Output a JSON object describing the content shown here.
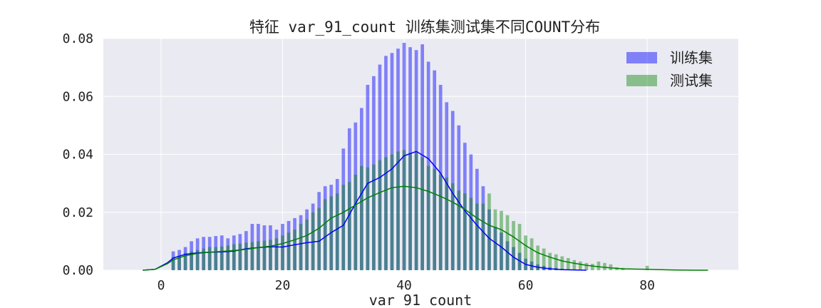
{
  "chart_data": {
    "type": "histogram+kde",
    "title": "特征 var_91_count 训练集测试集不同COUNT分布",
    "xlabel": "var_91_count",
    "ylabel": "",
    "xlim": [
      -9.5,
      95
    ],
    "ylim": [
      0,
      0.08
    ],
    "x_ticks": [
      0,
      20,
      40,
      60,
      80
    ],
    "y_ticks": [
      "0.00",
      "0.02",
      "0.04",
      "0.06",
      "0.08"
    ],
    "grid": true,
    "legend_position": "top-right",
    "bar_width": 0.55,
    "series": [
      {
        "name": "训练集",
        "color": "#0000ff",
        "bar_opacity": 0.45,
        "bin_centers": [
          2,
          3,
          4,
          5,
          6,
          7,
          8,
          9,
          10,
          11,
          12,
          13,
          14,
          15,
          16,
          17,
          18,
          19,
          20,
          21,
          22,
          23,
          24,
          25,
          26,
          27,
          28,
          29,
          30,
          31,
          32,
          33,
          34,
          35,
          36,
          37,
          38,
          39,
          40,
          41,
          42,
          43,
          44,
          45,
          46,
          47,
          48,
          49,
          50,
          51,
          52,
          53,
          54,
          55,
          56,
          57,
          58,
          59,
          60,
          61,
          62,
          63,
          64,
          65,
          66,
          67
        ],
        "values": [
          0.0065,
          0.007,
          0.008,
          0.01,
          0.011,
          0.0115,
          0.0115,
          0.0118,
          0.012,
          0.011,
          0.012,
          0.0125,
          0.0135,
          0.016,
          0.016,
          0.0155,
          0.0155,
          0.014,
          0.016,
          0.017,
          0.018,
          0.019,
          0.021,
          0.023,
          0.027,
          0.029,
          0.0295,
          0.0315,
          0.042,
          0.049,
          0.051,
          0.056,
          0.064,
          0.067,
          0.071,
          0.074,
          0.075,
          0.0765,
          0.0785,
          0.077,
          0.076,
          0.078,
          0.072,
          0.069,
          0.064,
          0.058,
          0.055,
          0.05,
          0.044,
          0.04,
          0.035,
          0.029,
          0.021,
          0.015,
          0.013,
          0.01,
          0.008,
          0.006,
          0.004,
          0.003,
          0.002,
          0.0015,
          0.001,
          0.0008,
          0.0005,
          0.0003
        ],
        "kde_x": [
          -3,
          -1,
          1,
          2,
          4,
          6,
          8,
          10,
          12,
          14,
          16,
          18,
          20,
          22,
          24,
          26,
          28,
          30,
          32,
          34,
          36,
          38,
          40,
          42,
          44,
          46,
          48,
          50,
          52,
          54,
          56,
          58,
          60,
          62,
          64,
          66,
          68,
          70
        ],
        "kde_y": [
          0.0,
          0.0003,
          0.0025,
          0.0042,
          0.0055,
          0.006,
          0.0062,
          0.0063,
          0.0066,
          0.0074,
          0.0078,
          0.0081,
          0.008,
          0.0088,
          0.0095,
          0.01,
          0.013,
          0.0155,
          0.023,
          0.03,
          0.032,
          0.035,
          0.0395,
          0.041,
          0.0385,
          0.0335,
          0.0265,
          0.0205,
          0.0155,
          0.011,
          0.008,
          0.0045,
          0.002,
          0.001,
          0.0005,
          0.0002,
          0.0001,
          0.0
        ]
      },
      {
        "name": "测试集",
        "color": "#008000",
        "bar_opacity": 0.42,
        "bin_centers": [
          2,
          3,
          4,
          5,
          6,
          7,
          8,
          9,
          10,
          11,
          12,
          13,
          14,
          15,
          16,
          17,
          18,
          19,
          20,
          21,
          22,
          23,
          24,
          25,
          26,
          27,
          28,
          29,
          30,
          31,
          32,
          33,
          34,
          35,
          36,
          37,
          38,
          39,
          40,
          41,
          42,
          43,
          44,
          45,
          46,
          47,
          48,
          49,
          50,
          51,
          52,
          53,
          54,
          55,
          56,
          57,
          58,
          59,
          60,
          61,
          62,
          63,
          64,
          65,
          66,
          67,
          68,
          69,
          70,
          71,
          72,
          73,
          74,
          75,
          76,
          80
        ],
        "values": [
          0.0045,
          0.005,
          0.006,
          0.0065,
          0.007,
          0.0075,
          0.008,
          0.008,
          0.0082,
          0.0085,
          0.009,
          0.0092,
          0.0095,
          0.0097,
          0.01,
          0.0102,
          0.0105,
          0.011,
          0.012,
          0.013,
          0.014,
          0.016,
          0.0175,
          0.02,
          0.0215,
          0.0245,
          0.0255,
          0.0265,
          0.0295,
          0.0305,
          0.033,
          0.036,
          0.0355,
          0.0365,
          0.038,
          0.039,
          0.04,
          0.041,
          0.0415,
          0.0405,
          0.041,
          0.039,
          0.036,
          0.035,
          0.033,
          0.032,
          0.03,
          0.0275,
          0.0265,
          0.025,
          0.023,
          0.023,
          0.0265,
          0.021,
          0.0205,
          0.019,
          0.017,
          0.016,
          0.012,
          0.011,
          0.0085,
          0.0075,
          0.006,
          0.0055,
          0.0048,
          0.0042,
          0.0035,
          0.003,
          0.0025,
          0.0022,
          0.003,
          0.0025,
          0.002,
          0.001,
          0.0008,
          0.0015
        ],
        "kde_x": [
          -3,
          -1,
          1,
          2,
          4,
          6,
          8,
          10,
          12,
          14,
          16,
          18,
          20,
          22,
          24,
          26,
          28,
          30,
          32,
          34,
          36,
          38,
          40,
          42,
          44,
          46,
          48,
          50,
          52,
          54,
          56,
          58,
          60,
          62,
          64,
          66,
          68,
          70,
          72,
          74,
          76,
          80,
          84,
          88,
          90
        ],
        "kde_y": [
          0.0,
          0.0003,
          0.0022,
          0.0036,
          0.005,
          0.0058,
          0.0062,
          0.0065,
          0.0068,
          0.0072,
          0.0078,
          0.0083,
          0.0092,
          0.0105,
          0.012,
          0.0145,
          0.018,
          0.02,
          0.0225,
          0.025,
          0.0268,
          0.0285,
          0.029,
          0.0285,
          0.0272,
          0.0255,
          0.0235,
          0.021,
          0.018,
          0.0155,
          0.014,
          0.0115,
          0.0085,
          0.006,
          0.0045,
          0.0032,
          0.0024,
          0.0017,
          0.0012,
          0.0008,
          0.0005,
          0.0003,
          0.0001,
          0.0,
          0.0
        ]
      }
    ]
  }
}
